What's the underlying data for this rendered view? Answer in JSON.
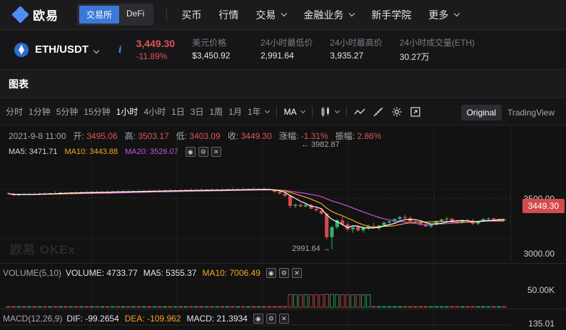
{
  "nav": {
    "brand": "欧易",
    "seg": [
      "交易所",
      "DeFi"
    ],
    "links": [
      {
        "label": "买币",
        "chevron": false
      },
      {
        "label": "行情",
        "chevron": false
      },
      {
        "label": "交易",
        "chevron": true
      },
      {
        "label": "金融业务",
        "chevron": true
      },
      {
        "label": "新手学院",
        "chevron": false
      },
      {
        "label": "更多",
        "chevron": true
      }
    ],
    "accent": "#3c78d8"
  },
  "ticker": {
    "pair": "ETH/USDT",
    "info": "i",
    "last_price": "3,449.30",
    "change": "-11.89%",
    "stats": [
      {
        "label": "美元价格",
        "value": "$3,450.92"
      },
      {
        "label": "24小时最低价",
        "value": "2,991.64"
      },
      {
        "label": "24小时最高价",
        "value": "3,935.27"
      },
      {
        "label": "24小时成交量(ETH)",
        "value": "30.27万"
      }
    ],
    "down_color": "#e05454"
  },
  "panel": {
    "title": "图表"
  },
  "toolbar": {
    "intervals": [
      "分时",
      "1分钟",
      "5分钟",
      "15分钟",
      "1小时",
      "4小时",
      "1日",
      "3日",
      "1周",
      "1月",
      "1年"
    ],
    "active_interval": "1小时",
    "indicator": "MA",
    "views": [
      "Original",
      "TradingView"
    ],
    "active_view": "Original"
  },
  "ohlc": {
    "time": "2021-9-8 11:00",
    "open_label": "开:",
    "open": "3495.06",
    "high_label": "高:",
    "high": "3503.17",
    "low_label": "低:",
    "low": "3403.09",
    "close_label": "收:",
    "close": "3449.30",
    "chg_label": "涨幅:",
    "chg": "-1.31%",
    "amp_label": "振幅:",
    "amp": "2.86%"
  },
  "ma_legend": {
    "ma5": "MA5: 3471.71",
    "ma10": "MA10: 3443.88",
    "ma20": "MA20: 3526.07"
  },
  "price_axis": {
    "labels": [
      "3500.00",
      "3000.00"
    ],
    "last_tag": "3449.30"
  },
  "annotations": {
    "high": "3982.87",
    "low": "2991.64"
  },
  "watermark": "欧易 OKEx",
  "volume": {
    "title": "VOLUME(5,10)",
    "vol": "VOLUME: 4733.77",
    "ma5": "MA5: 5355.37",
    "ma10": "MA10: 7006.49",
    "axis": "50.00K"
  },
  "macd": {
    "title": "MACD(12,26,9)",
    "dif": "DIF: -99.2654",
    "dea": "DEA: -109.962",
    "macd": "MACD: 21.3934",
    "axis": "135.01"
  },
  "chart_data": {
    "type": "candlestick",
    "y_range": [
      2900,
      4050
    ],
    "candles_ohlc": [
      [
        3495,
        3500,
        3485,
        3490
      ],
      [
        3490,
        3496,
        3470,
        3475
      ],
      [
        3476,
        3490,
        3465,
        3485
      ],
      [
        3484,
        3498,
        3475,
        3480
      ],
      [
        3480,
        3492,
        3472,
        3488
      ],
      [
        3488,
        3500,
        3480,
        3482
      ],
      [
        3482,
        3495,
        3476,
        3490
      ],
      [
        3490,
        3502,
        3484,
        3486
      ],
      [
        3486,
        3498,
        3478,
        3494
      ],
      [
        3494,
        3510,
        3488,
        3492
      ],
      [
        3492,
        3505,
        3486,
        3499
      ],
      [
        3499,
        3508,
        3490,
        3494
      ],
      [
        3494,
        3504,
        3486,
        3500
      ],
      [
        3500,
        3512,
        3492,
        3496
      ],
      [
        3496,
        3508,
        3488,
        3503
      ],
      [
        3503,
        3515,
        3496,
        3498
      ],
      [
        3498,
        3510,
        3490,
        3505
      ],
      [
        3505,
        3520,
        3498,
        3500
      ],
      [
        3500,
        3512,
        3494,
        3507
      ],
      [
        3507,
        3518,
        3500,
        3502
      ],
      [
        3502,
        3512,
        3496,
        3508
      ],
      [
        3508,
        3522,
        3502,
        3504
      ],
      [
        3504,
        3515,
        3498,
        3511
      ],
      [
        3511,
        3522,
        3505,
        3506
      ],
      [
        3506,
        3518,
        3500,
        3512
      ],
      [
        3512,
        3526,
        3506,
        3508
      ],
      [
        3508,
        3520,
        3502,
        3514
      ],
      [
        3514,
        3528,
        3508,
        3510
      ],
      [
        3510,
        3522,
        3504,
        3516
      ],
      [
        3516,
        3530,
        3510,
        3512
      ],
      [
        3512,
        3524,
        3506,
        3518
      ],
      [
        3518,
        3532,
        3512,
        3514
      ],
      [
        3514,
        3526,
        3508,
        3519
      ],
      [
        3519,
        3534,
        3512,
        3515
      ],
      [
        3515,
        3528,
        3508,
        3521
      ],
      [
        3521,
        3536,
        3514,
        3516
      ],
      [
        3516,
        3530,
        3510,
        3522
      ],
      [
        3522,
        3538,
        3516,
        3518
      ],
      [
        3518,
        3530,
        3512,
        3524
      ],
      [
        3524,
        3538,
        3518,
        3520
      ],
      [
        3520,
        3532,
        3514,
        3525
      ],
      [
        3525,
        3540,
        3518,
        3521
      ],
      [
        3521,
        3534,
        3514,
        3527
      ],
      [
        3527,
        3542,
        3520,
        3523
      ],
      [
        3523,
        3536,
        3516,
        3529
      ],
      [
        3529,
        3544,
        3522,
        3524
      ],
      [
        3524,
        3536,
        3518,
        3530
      ],
      [
        3530,
        3546,
        3524,
        3526
      ],
      [
        3526,
        3538,
        3520,
        3532
      ],
      [
        3532,
        3548,
        3526,
        3527
      ],
      [
        3527,
        3540,
        3520,
        3520
      ],
      [
        3520,
        3530,
        3500,
        3505
      ],
      [
        3505,
        3515,
        3480,
        3490
      ],
      [
        3490,
        3500,
        3460,
        3470
      ],
      [
        3470,
        3480,
        3360,
        3380
      ],
      [
        3380,
        3400,
        3360,
        3390
      ],
      [
        3390,
        3405,
        3370,
        3375
      ],
      [
        3375,
        3395,
        3365,
        3390
      ],
      [
        3390,
        3400,
        3350,
        3355
      ],
      [
        3355,
        3370,
        3330,
        3340
      ],
      [
        3340,
        3360,
        3300,
        3310
      ],
      [
        3310,
        3320,
        3080,
        3100
      ],
      [
        3100,
        3200,
        2991,
        3190
      ],
      [
        3190,
        3260,
        3170,
        3250
      ],
      [
        3250,
        3290,
        3200,
        3215
      ],
      [
        3215,
        3240,
        3150,
        3170
      ],
      [
        3170,
        3200,
        3140,
        3190
      ],
      [
        3190,
        3210,
        3150,
        3160
      ],
      [
        3160,
        3200,
        3140,
        3185
      ],
      [
        3185,
        3215,
        3165,
        3200
      ],
      [
        3200,
        3230,
        3175,
        3180
      ],
      [
        3180,
        3210,
        3160,
        3205
      ],
      [
        3205,
        3240,
        3190,
        3230
      ],
      [
        3230,
        3260,
        3215,
        3240
      ],
      [
        3240,
        3270,
        3225,
        3262
      ],
      [
        3262,
        3290,
        3240,
        3280
      ],
      [
        3280,
        3300,
        3260,
        3270
      ],
      [
        3270,
        3290,
        3230,
        3240
      ],
      [
        3240,
        3260,
        3220,
        3232
      ],
      [
        3232,
        3250,
        3200,
        3210
      ],
      [
        3210,
        3230,
        3190,
        3195
      ],
      [
        3195,
        3220,
        3180,
        3212
      ],
      [
        3212,
        3250,
        3200,
        3245
      ],
      [
        3245,
        3268,
        3230,
        3258
      ],
      [
        3258,
        3280,
        3240,
        3266
      ],
      [
        3266,
        3275,
        3230,
        3238
      ],
      [
        3238,
        3250,
        3220,
        3232
      ],
      [
        3232,
        3258,
        3222,
        3250
      ],
      [
        3250,
        3268,
        3240,
        3248
      ],
      [
        3248,
        3262,
        3210,
        3220
      ],
      [
        3220,
        3250,
        3205,
        3244
      ],
      [
        3244,
        3270,
        3235,
        3262
      ],
      [
        3262,
        3275,
        3250,
        3268
      ],
      [
        3268,
        3275,
        3240,
        3252
      ],
      [
        3252,
        3265,
        3240,
        3260
      ],
      [
        3260,
        3268,
        3245,
        3249
      ]
    ],
    "candle_colors": {
      "up": "#2eaf6e",
      "down": "#d34b4b"
    },
    "ma_colors": {
      "ma5": "#ffffff",
      "ma10": "#f5a623",
      "ma20": "#c653e0"
    }
  }
}
